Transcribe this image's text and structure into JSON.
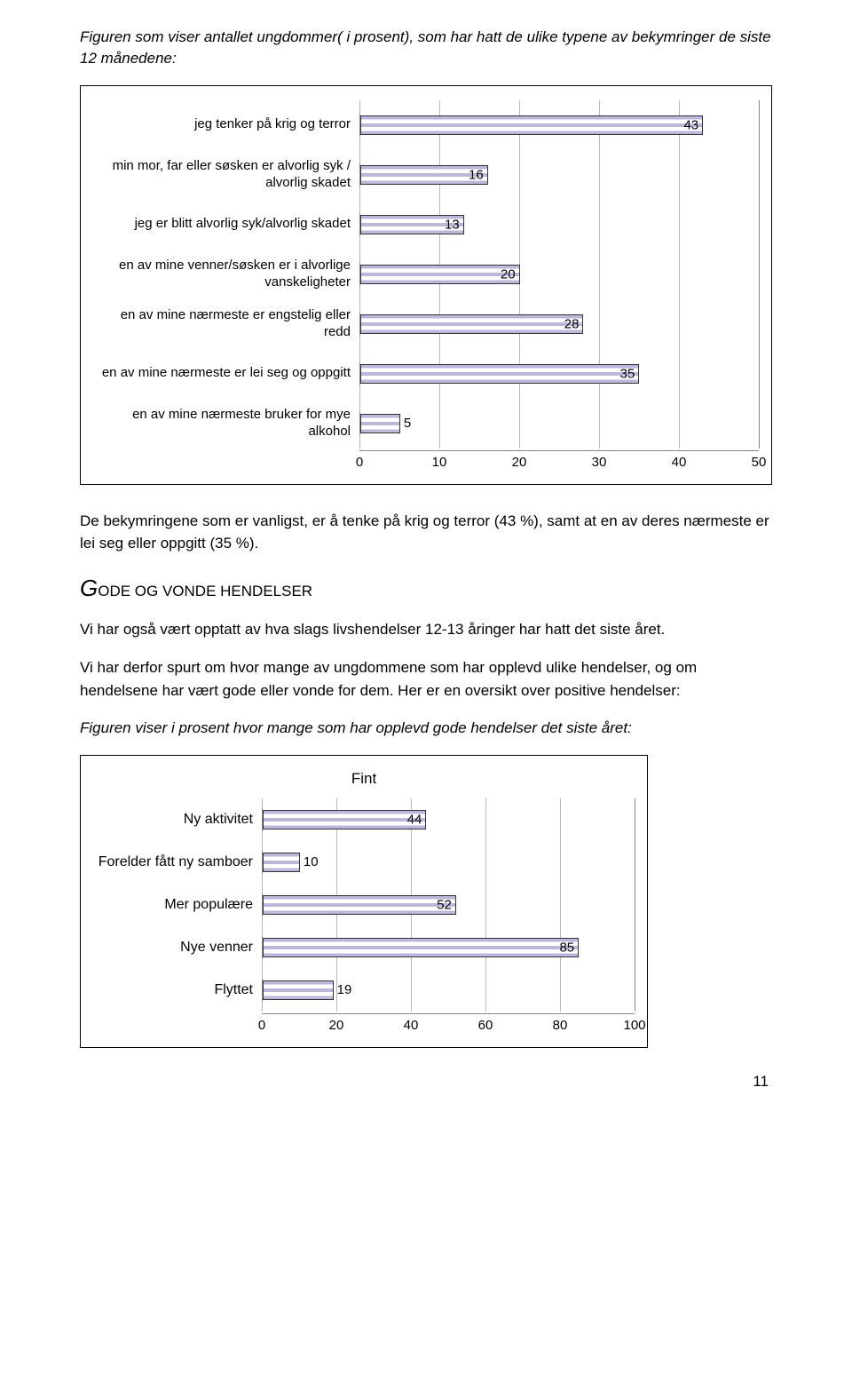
{
  "intro": "Figuren som viser antallet ungdommer( i prosent), som har hatt de ulike typene av bekymringer de siste 12 månedene:",
  "chart1": {
    "type": "bar",
    "categories": [
      "jeg tenker på krig og terror",
      "min mor, far eller søsken er alvorlig syk / alvorlig skadet",
      "jeg er blitt alvorlig syk/alvorlig skadet",
      "en av mine venner/søsken er i alvorlige vanskeligheter",
      "en av mine nærmeste er engstelig eller redd",
      "en av mine nærmeste er lei seg og oppgitt",
      "en av mine nærmeste bruker for mye alkohol"
    ],
    "values": [
      43,
      16,
      13,
      20,
      28,
      35,
      5
    ],
    "label_inside": [
      true,
      true,
      true,
      true,
      true,
      true,
      false
    ],
    "xmax": 50,
    "xtick_step": 10,
    "xticks": [
      0,
      10,
      20,
      30,
      40,
      50
    ],
    "bar_color": "#bdb7e0",
    "grid_color": "#b8b8b8",
    "text_color": "#000000",
    "label_fontsize": 15,
    "cat_fontsize": 15
  },
  "para1": "De bekymringene som er vanligst, er å tenke på krig og terror (43 %), samt at en av deres nærmeste er lei seg eller oppgitt (35 %).",
  "section_heading_big": "G",
  "section_heading_rest": "ODE OG VONDE HENDELSER",
  "para2a": "Vi har også vært opptatt av hva slags livshendelser 12-13 åringer har hatt det siste året.",
  "para2b": "Vi har derfor spurt om hvor mange av ungdommene som har opplevd ulike hendelser, og om hendelsene har vært gode eller vonde for dem. Her er en oversikt over positive hendelser:",
  "caption2": "Figuren viser i prosent hvor mange som har opplevd gode hendelser det siste året:",
  "chart2": {
    "type": "bar",
    "title": "Fint",
    "categories": [
      "Ny aktivitet",
      "Forelder fått ny samboer",
      "Mer populære",
      "Nye venner",
      "Flyttet"
    ],
    "values": [
      44,
      10,
      52,
      85,
      19
    ],
    "label_inside": [
      true,
      false,
      true,
      true,
      false
    ],
    "xmax": 100,
    "xtick_step": 20,
    "xticks": [
      0,
      20,
      40,
      60,
      80,
      100
    ],
    "bar_color": "#bdb7e0",
    "grid_color": "#b8b8b8",
    "text_color": "#000000",
    "label_fontsize": 16,
    "cat_fontsize": 16
  },
  "page_number": "11"
}
